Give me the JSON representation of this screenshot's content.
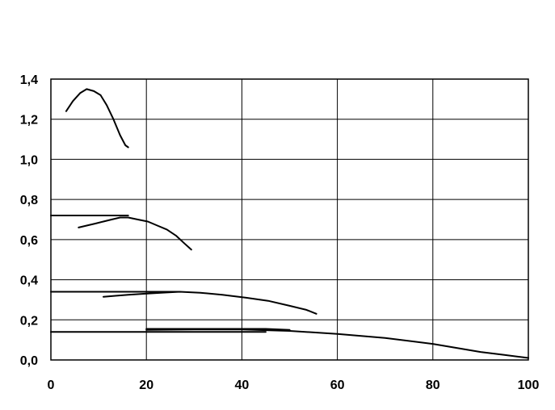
{
  "chart_data": {
    "type": "line",
    "title": "",
    "xlabel": "",
    "ylabel": "",
    "xlim": [
      0,
      100
    ],
    "ylim": [
      0,
      1.4
    ],
    "grid": true,
    "legend": "none",
    "x_ticks": [
      0,
      20,
      40,
      60,
      80,
      100
    ],
    "x_tick_labels": [
      "0",
      "20",
      "40",
      "60",
      "80",
      "100"
    ],
    "y_ticks": [
      0,
      0.2,
      0.4,
      0.6,
      0.8,
      1.0,
      1.2,
      1.4
    ],
    "y_tick_labels": [
      "0,0",
      "0,2",
      "0,4",
      "0,6",
      "0,8",
      "1,0",
      "1,2",
      "1,4"
    ],
    "line_color": "#000000",
    "grid_color": "#000000",
    "series": [
      {
        "x": [
          3.2,
          4.6,
          6.1,
          7.5,
          9.0,
          10.4,
          11.7,
          13.1,
          14.5,
          15.6,
          16.2
        ],
        "y": [
          1.24,
          1.29,
          1.33,
          1.35,
          1.34,
          1.32,
          1.27,
          1.2,
          1.12,
          1.07,
          1.06
        ]
      },
      {
        "x": [
          0,
          6.0,
          16.2
        ],
        "y": [
          0.72,
          0.72,
          0.72
        ]
      },
      {
        "x": [
          5.8,
          7.5,
          9.3,
          11.0,
          12.7,
          14.5,
          16.2,
          18.2,
          20.3,
          22.3,
          24.3,
          26.2,
          28.0,
          29.4
        ],
        "y": [
          0.66,
          0.67,
          0.68,
          0.69,
          0.7,
          0.71,
          0.71,
          0.7,
          0.69,
          0.67,
          0.65,
          0.62,
          0.58,
          0.55
        ]
      },
      {
        "x": [
          0,
          11.0,
          27.0
        ],
        "y": [
          0.34,
          0.34,
          0.34
        ]
      },
      {
        "x": [
          11.0,
          13.5,
          16.2,
          19.5,
          23.1,
          27.0,
          31.3,
          35.9,
          40.9,
          45.5,
          50.0,
          53.5,
          55.6
        ],
        "y": [
          0.315,
          0.32,
          0.325,
          0.33,
          0.335,
          0.34,
          0.335,
          0.325,
          0.31,
          0.295,
          0.27,
          0.25,
          0.23
        ]
      },
      {
        "x": [
          0,
          20.0,
          45.0
        ],
        "y": [
          0.14,
          0.14,
          0.14
        ]
      },
      {
        "x": [
          20.0,
          27.0,
          35.0,
          45.0,
          50.0
        ],
        "y": [
          0.155,
          0.155,
          0.155,
          0.155,
          0.15
        ]
      },
      {
        "x": [
          20.0,
          30.0,
          40.0,
          50.0,
          60.0,
          70.0,
          80.0,
          90.0,
          95.0,
          100.0
        ],
        "y": [
          0.15,
          0.152,
          0.152,
          0.145,
          0.13,
          0.11,
          0.08,
          0.04,
          0.025,
          0.01
        ]
      }
    ]
  }
}
